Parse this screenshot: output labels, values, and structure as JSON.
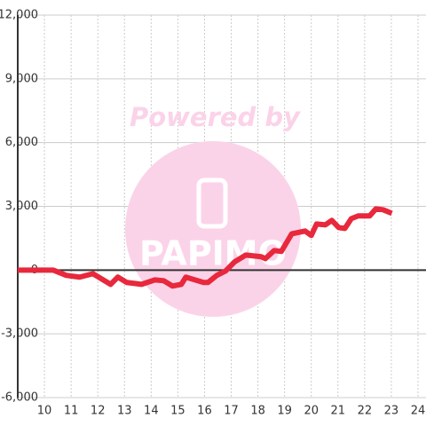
{
  "chart_data": {
    "type": "line",
    "annotations": [
      "Powered by",
      "PAPIMO"
    ],
    "x": [
      9,
      10.33,
      10.82,
      11.32,
      11.82,
      12.48,
      12.75,
      13.08,
      13.64,
      14.14,
      14.47,
      14.8,
      15.13,
      15.3,
      15.96,
      16.13,
      16.46,
      16.79,
      17.12,
      17.55,
      18.12,
      18.28,
      18.61,
      18.88,
      19.27,
      19.77,
      20.0,
      20.2,
      20.53,
      20.77,
      21.03,
      21.26,
      21.5,
      21.76,
      22.19,
      22.42,
      22.69,
      23.02
    ],
    "series": [
      {
        "color": "#e8283c",
        "values": [
          0,
          0,
          -250,
          -330,
          -170,
          -670,
          -330,
          -580,
          -670,
          -460,
          -500,
          -750,
          -670,
          -330,
          -580,
          -580,
          -250,
          -40,
          380,
          710,
          630,
          540,
          920,
          880,
          1710,
          1840,
          1630,
          2170,
          2130,
          2340,
          2000,
          1960,
          2420,
          2550,
          2550,
          2880,
          2840,
          2670
        ]
      }
    ],
    "xlim": [
      9,
      24.3
    ],
    "xticks": [
      10,
      11,
      12,
      13,
      14,
      15,
      16,
      17,
      18,
      19,
      20,
      21,
      22,
      23,
      24
    ],
    "ylim": [
      -6000,
      12000
    ],
    "yticks": [
      {
        "value": -6000,
        "label": "-6,000"
      },
      {
        "value": -3000,
        "label": "-3,000"
      },
      0,
      {
        "value": 3000,
        "label": "3,000"
      },
      {
        "value": 6000,
        "label": "6,000"
      },
      {
        "value": 9000,
        "label": "9,000"
      },
      {
        "value": 12000,
        "label": "12,000"
      }
    ],
    "grid": true
  }
}
